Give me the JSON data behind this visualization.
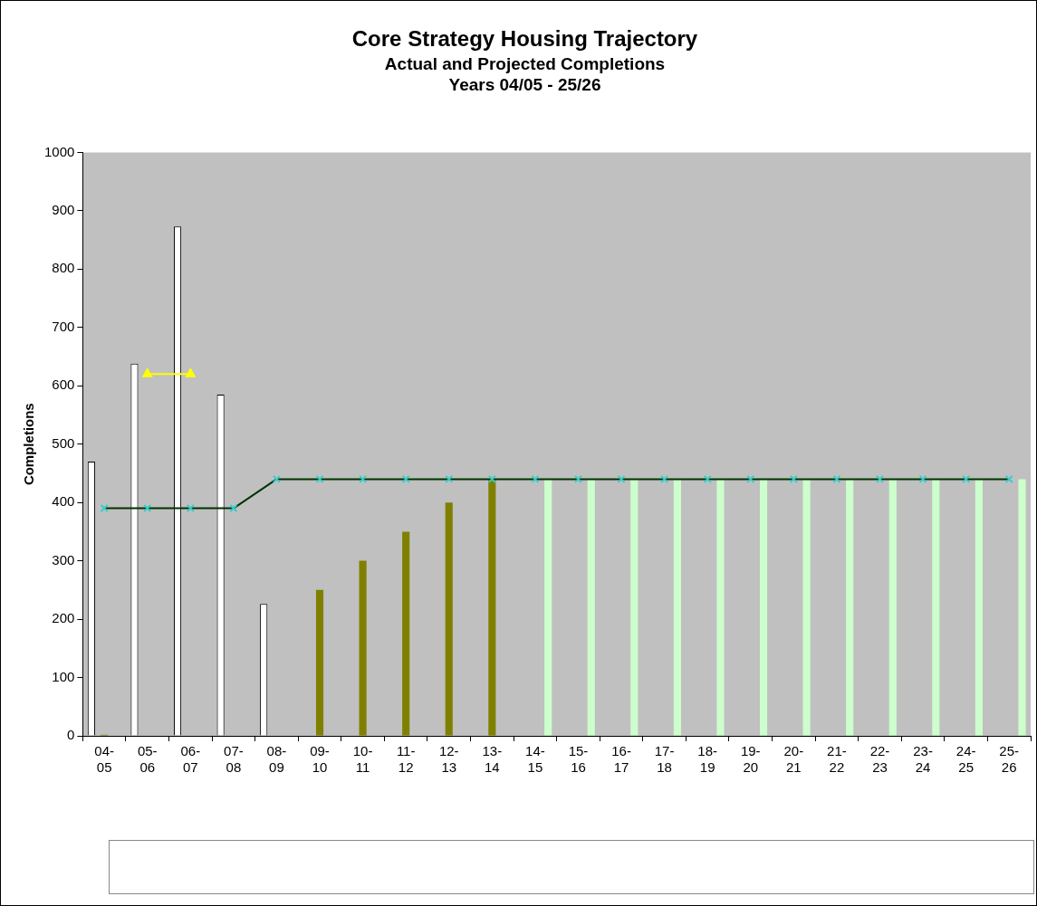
{
  "chart_data": {
    "type": "bar",
    "title": "Core Strategy Housing Trajectory",
    "subtitle": [
      "Actual and Projected Completions",
      "Years 04/05 - 25/26"
    ],
    "ylabel": "Completions",
    "categories": [
      "04-05",
      "05-06",
      "06-07",
      "07-08",
      "08-09",
      "09-10",
      "10-11",
      "11-12",
      "12-13",
      "13-14",
      "14-15",
      "15-16",
      "16-17",
      "17-18",
      "18-19",
      "19-20",
      "20-21",
      "21-22",
      "22-23",
      "23-24",
      "24-25",
      "25-26"
    ],
    "series": [
      {
        "color": "#ffffff",
        "values": [
          470,
          638,
          873,
          585,
          226,
          null,
          null,
          null,
          null,
          null,
          null,
          null,
          null,
          null,
          null,
          null,
          null,
          null,
          null,
          null,
          null,
          null
        ]
      },
      {
        "color": "#808000",
        "values": [
          2,
          null,
          null,
          null,
          null,
          250,
          300,
          350,
          400,
          440,
          null,
          null,
          null,
          null,
          null,
          null,
          null,
          null,
          null,
          null,
          null,
          null
        ]
      },
      {
        "color": "#ccffcc",
        "values": [
          null,
          null,
          null,
          null,
          null,
          null,
          null,
          null,
          null,
          null,
          440,
          440,
          440,
          440,
          440,
          440,
          440,
          440,
          440,
          440,
          440,
          440
        ]
      },
      {
        "type": "line",
        "color": "#003300",
        "marker": "cross",
        "colors": [
          "#33cccc",
          "#33cccc",
          "#33cccc",
          "#33cccc",
          "#33cccc",
          "#33cccc",
          "#33cccc",
          "#33cccc",
          "#33cccc",
          "#33cccc",
          "#33cccc",
          "#33cccc",
          "#33cccc",
          "#33cccc",
          "#33cccc",
          "#33cccc",
          "#33cccc",
          "#33cccc",
          "#33cccc",
          "#33cccc",
          "#33cccc",
          "#33cccc"
        ],
        "values": [
          390,
          390,
          390,
          390,
          440,
          440,
          440,
          440,
          440,
          440,
          440,
          440,
          440,
          440,
          440,
          440,
          440,
          440,
          440,
          440,
          440,
          440
        ]
      },
      {
        "type": "line",
        "color": "#ffff00",
        "marker": "triangle",
        "values": [
          null,
          620,
          620,
          null,
          null,
          null,
          null,
          null,
          null,
          null,
          null,
          null,
          null,
          null,
          null,
          null,
          null,
          null,
          null,
          null,
          null,
          null
        ]
      }
    ],
    "ylim": [
      0,
      1000
    ],
    "yticks": [
      0,
      100,
      200,
      300,
      400,
      500,
      600,
      700,
      800,
      900,
      1000
    ],
    "grid": false,
    "legend": false
  }
}
